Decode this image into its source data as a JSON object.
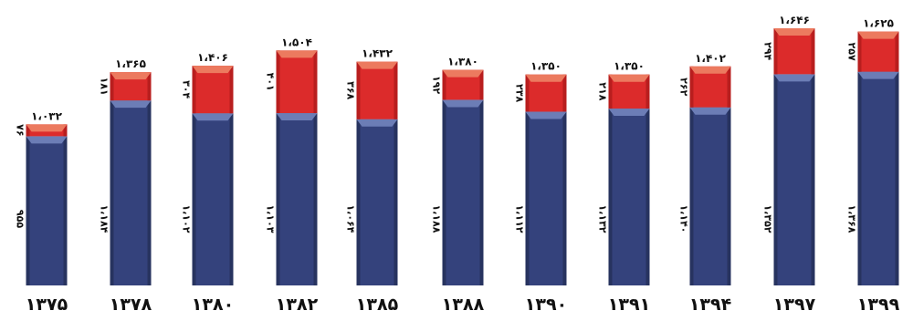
{
  "chart_data": {
    "type": "bar",
    "stacked": true,
    "categories": [
      "۱۳۷۵",
      "۱۳۷۸",
      "۱۳۸۰",
      "۱۳۸۲",
      "۱۳۸۵",
      "۱۳۸۸",
      "۱۳۹۰",
      "۱۳۹۱",
      "۱۳۹۴",
      "۱۳۹۷",
      "۱۳۹۹"
    ],
    "series": [
      {
        "values": [
          955,
          1184,
          1102,
          1103,
          1064,
          1188,
          1112,
          1132,
          1140,
          1352,
          1368
        ],
        "labels": [
          "۹۵۵",
          "۱،۱۸۴",
          "۱،۱۰۲",
          "۱،۱۰۳",
          "۱،۰۶۴",
          "۱،۱۸۸",
          "۱،۱۱۲",
          "۱،۱۳۲",
          "۱،۱۴۰",
          "۱،۳۵۲",
          "۱،۳۶۸"
        ],
        "color": "#34427c"
      },
      {
        "values": [
          76,
          181,
          304,
          401,
          368,
          192,
          238,
          218,
          262,
          294,
          257
        ],
        "labels": [
          "۷۶",
          "۱۸۱",
          "۳۰۴",
          "۴۰۱",
          "۳۶۸",
          "۱۹۲",
          "۲۳۸",
          "۲۱۸",
          "۲۶۲",
          "۲۹۴",
          "۲۵۷"
        ],
        "color": "#dc2b2b"
      }
    ],
    "totals": [
      1032,
      1365,
      1406,
      1504,
      1432,
      1380,
      1350,
      1350,
      1402,
      1646,
      1625
    ],
    "total_labels": [
      "۱،۰۳۲",
      "۱،۳۶۵",
      "۱،۴۰۶",
      "۱،۵۰۴",
      "۱،۴۳۲",
      "۱،۳۸۰",
      "۱،۳۵۰",
      "۱،۳۵۰",
      "۱،۴۰۲",
      "۱،۶۴۶",
      "۱،۶۲۵"
    ],
    "ylim": [
      0,
      1646
    ],
    "grid": false,
    "legend": "none",
    "title": "",
    "xlabel": "",
    "ylabel": ""
  }
}
